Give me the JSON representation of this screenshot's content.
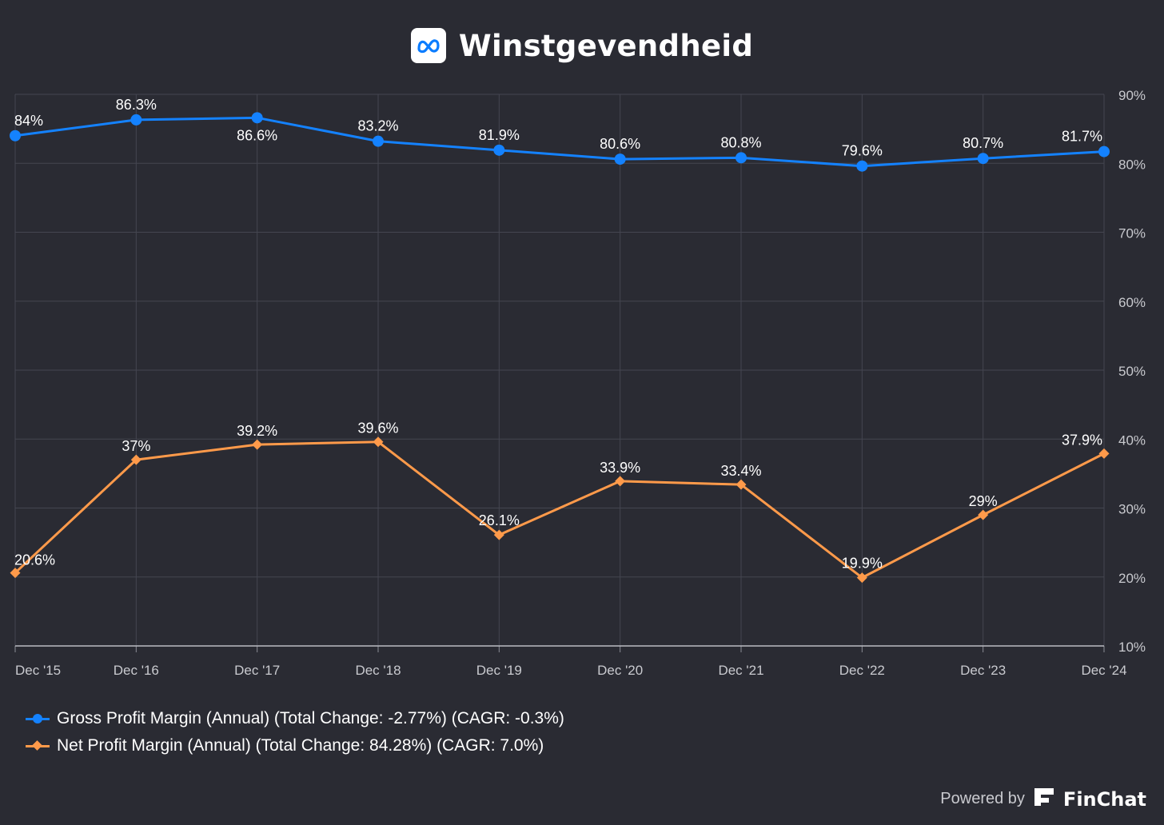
{
  "header": {
    "title": "Winstgevendheid",
    "logo_icon": "meta-logo-icon"
  },
  "chart_data": {
    "type": "line",
    "x": [
      "Dec '15",
      "Dec '16",
      "Dec '17",
      "Dec '18",
      "Dec '19",
      "Dec '20",
      "Dec '21",
      "Dec '22",
      "Dec '23",
      "Dec '24"
    ],
    "ylim": [
      10,
      90
    ],
    "yticks": [
      "10%",
      "20%",
      "30%",
      "40%",
      "50%",
      "60%",
      "70%",
      "80%",
      "90%"
    ],
    "y_axis_position": "right",
    "grid": true,
    "legend_position": "bottom-left",
    "series": [
      {
        "name": "Gross Profit Margin (Annual) (Total Change: -2.77%) (CAGR: -0.3%)",
        "color": "#1482ff",
        "marker": "circle",
        "values": [
          84,
          86.3,
          86.6,
          83.2,
          81.9,
          80.6,
          80.8,
          79.6,
          80.7,
          81.7
        ],
        "labels": [
          "84%",
          "86.3%",
          "86.6%",
          "83.2%",
          "81.9%",
          "80.6%",
          "80.8%",
          "79.6%",
          "80.7%",
          "81.7%"
        ]
      },
      {
        "name": "Net Profit Margin (Annual) (Total Change: 84.28%) (CAGR: 7.0%)",
        "color": "#ff9a4a",
        "marker": "diamond",
        "values": [
          20.6,
          37,
          39.2,
          39.6,
          26.1,
          33.9,
          33.4,
          19.9,
          29,
          37.9
        ],
        "labels": [
          "20.6%",
          "37%",
          "39.2%",
          "39.6%",
          "26.1%",
          "33.9%",
          "33.4%",
          "19.9%",
          "29%",
          "37.9%"
        ]
      }
    ]
  },
  "footer": {
    "powered_by": "Powered by",
    "brand": "FinChat",
    "brand_icon": "finchat-logo-icon"
  },
  "colors": {
    "background": "#2a2b33",
    "grid": "#444650",
    "axis_text": "#c9cacf",
    "label_text": "#ffffff"
  }
}
